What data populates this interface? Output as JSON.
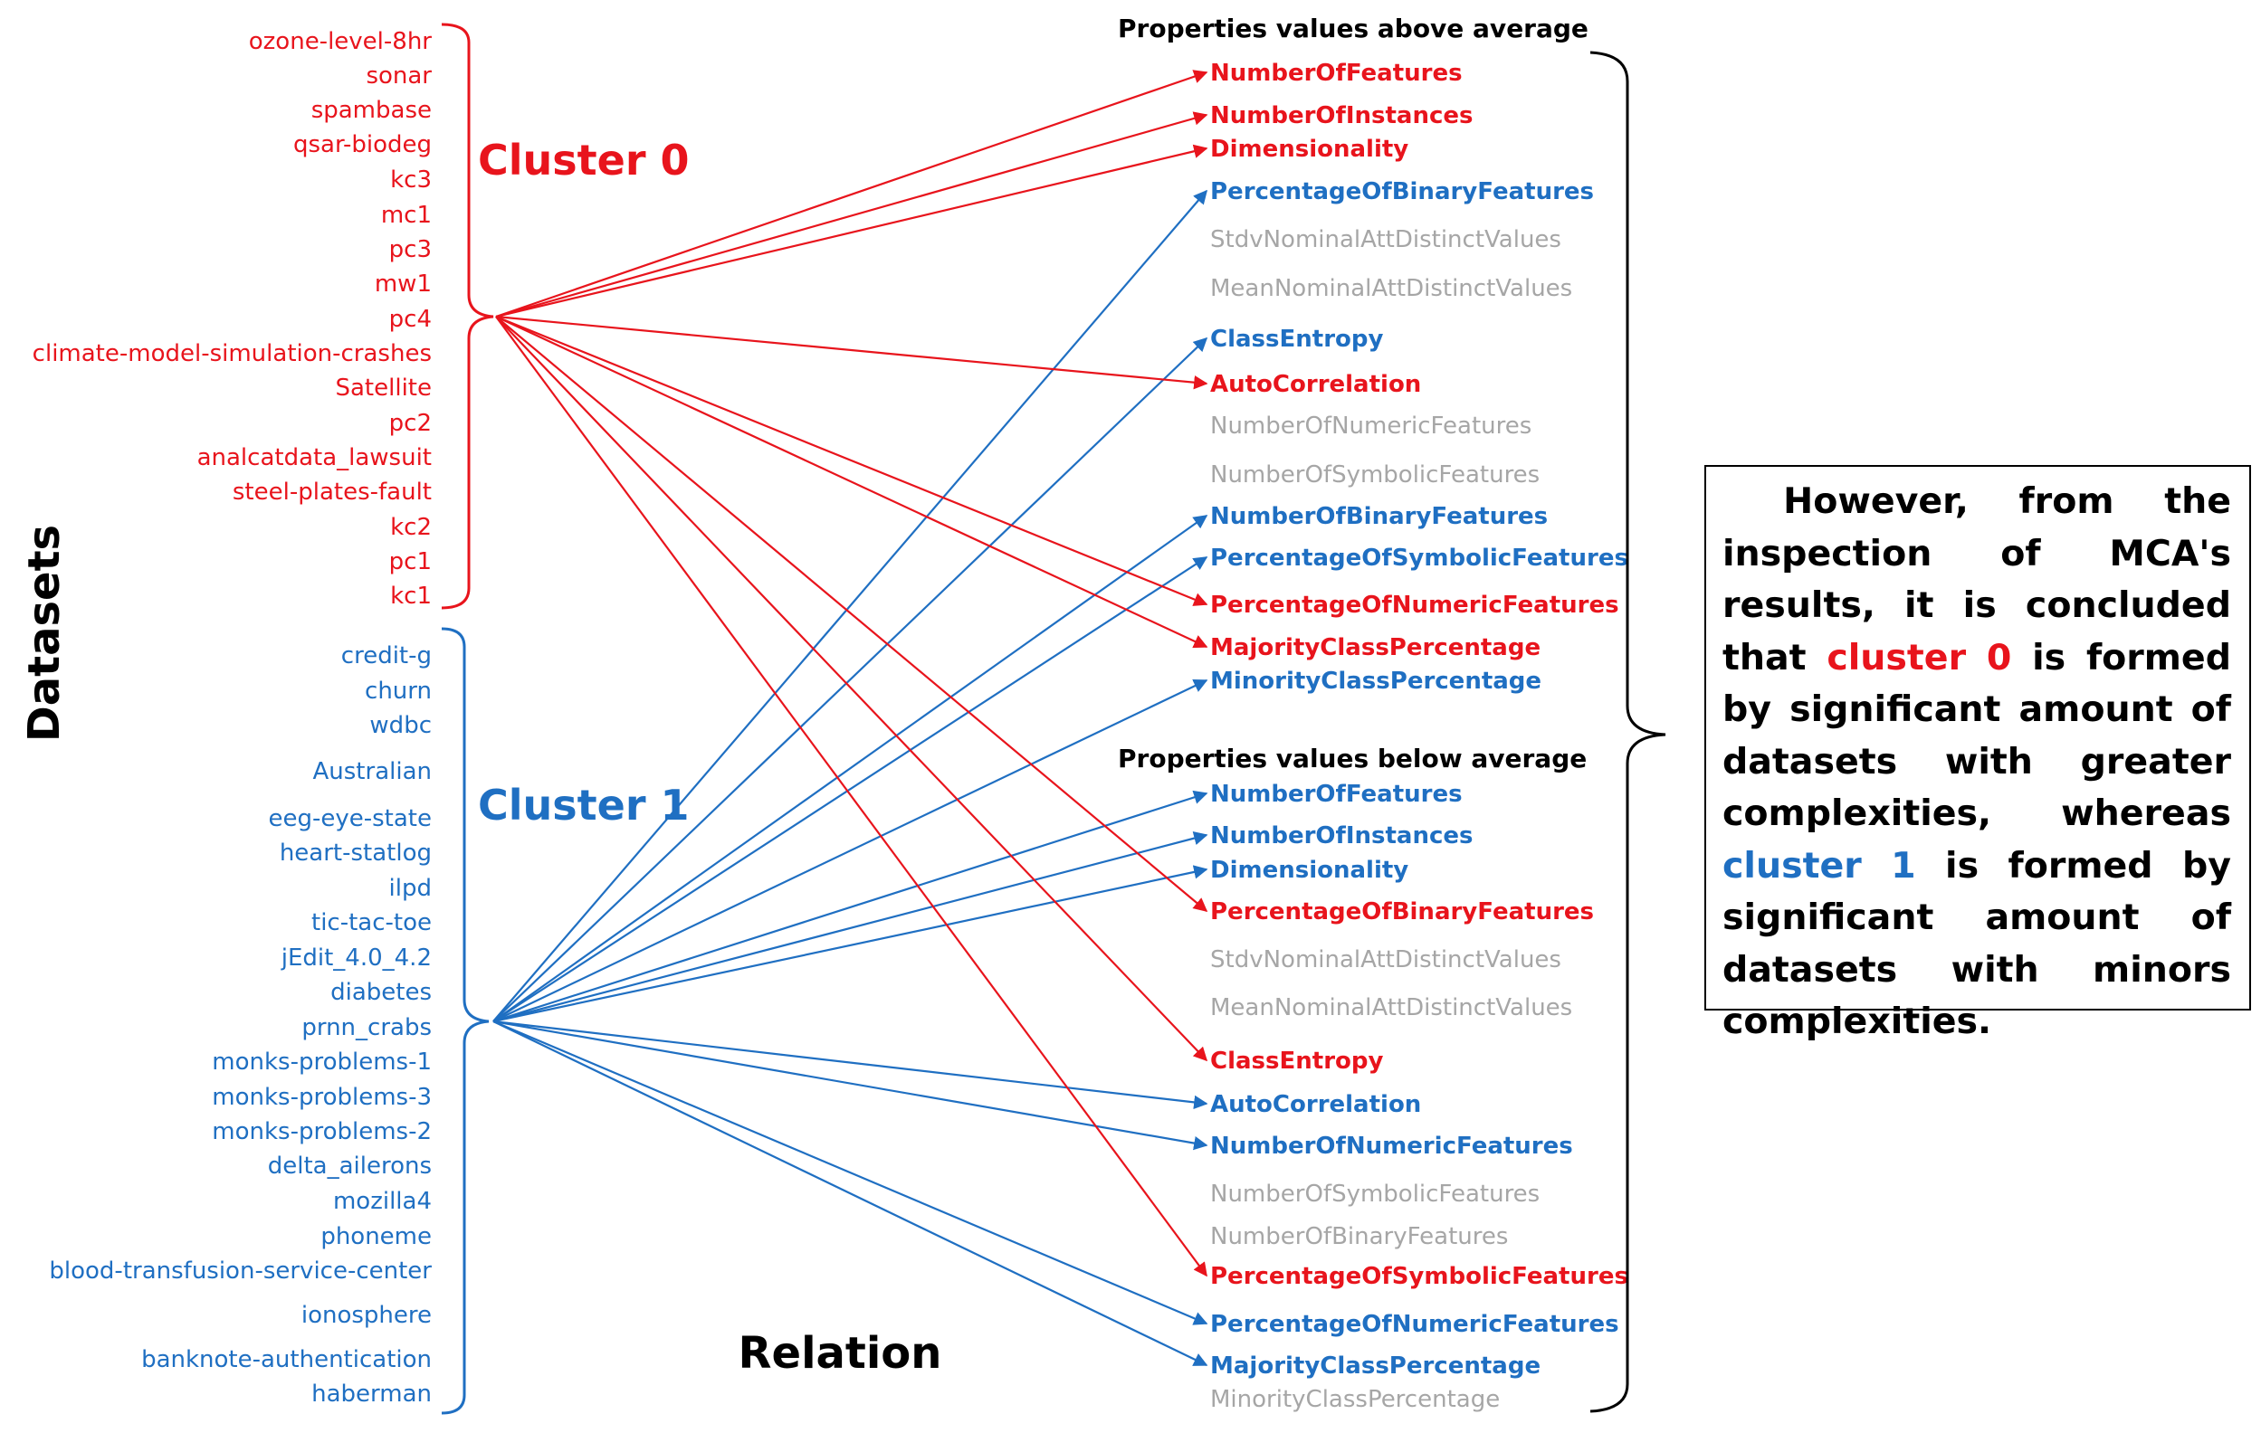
{
  "colors": {
    "cluster0": "#e8141c",
    "cluster1": "#1f6fc2",
    "neutral": "#a6a6a6",
    "text": "#000000"
  },
  "labels": {
    "datasets": "Datasets",
    "relation": "Relation",
    "cluster0": "Cluster 0",
    "cluster1": "Cluster 1",
    "above_header": "Properties values above average",
    "below_header": "Properties values below average"
  },
  "cluster0_datasets": [
    "ozone-level-8hr",
    "sonar",
    "spambase",
    "qsar-biodeg",
    "kc3",
    "mc1",
    "pc3",
    "mw1",
    "pc4",
    "climate-model-simulation-crashes",
    "Satellite",
    "pc2",
    "analcatdata_lawsuit",
    "steel-plates-fault",
    "kc2",
    "pc1",
    "kc1"
  ],
  "cluster1_datasets": [
    "credit-g",
    "churn",
    "wdbc",
    "Australian",
    "eeg-eye-state",
    "heart-statlog",
    "ilpd",
    "tic-tac-toe",
    "jEdit_4.0_4.2",
    "diabetes",
    "prnn_crabs",
    "monks-problems-1",
    "monks-problems-3",
    "monks-problems-2",
    "delta_ailerons",
    "mozilla4",
    "phoneme",
    "blood-transfusion-service-center",
    "ionosphere",
    "banknote-authentication",
    "haberman"
  ],
  "above_properties": [
    {
      "name": "NumberOfFeatures",
      "cluster": "0"
    },
    {
      "name": "NumberOfInstances",
      "cluster": "0"
    },
    {
      "name": "Dimensionality",
      "cluster": "0"
    },
    {
      "name": "PercentageOfBinaryFeatures",
      "cluster": "1"
    },
    {
      "name": "StdvNominalAttDistinctValues",
      "cluster": "none"
    },
    {
      "name": "MeanNominalAttDistinctValues",
      "cluster": "none"
    },
    {
      "name": "ClassEntropy",
      "cluster": "1"
    },
    {
      "name": "AutoCorrelation",
      "cluster": "0"
    },
    {
      "name": "NumberOfNumericFeatures",
      "cluster": "none"
    },
    {
      "name": "NumberOfSymbolicFeatures",
      "cluster": "none"
    },
    {
      "name": "NumberOfBinaryFeatures",
      "cluster": "1"
    },
    {
      "name": "PercentageOfSymbolicFeatures",
      "cluster": "1"
    },
    {
      "name": "PercentageOfNumericFeatures",
      "cluster": "0"
    },
    {
      "name": "MajorityClassPercentage",
      "cluster": "0"
    },
    {
      "name": "MinorityClassPercentage",
      "cluster": "1"
    }
  ],
  "below_properties": [
    {
      "name": "NumberOfFeatures",
      "cluster": "1"
    },
    {
      "name": "NumberOfInstances",
      "cluster": "1"
    },
    {
      "name": "Dimensionality",
      "cluster": "1"
    },
    {
      "name": "PercentageOfBinaryFeatures",
      "cluster": "0"
    },
    {
      "name": "StdvNominalAttDistinctValues",
      "cluster": "none"
    },
    {
      "name": "MeanNominalAttDistinctValues",
      "cluster": "none"
    },
    {
      "name": "ClassEntropy",
      "cluster": "0"
    },
    {
      "name": "AutoCorrelation",
      "cluster": "1"
    },
    {
      "name": "NumberOfNumericFeatures",
      "cluster": "1"
    },
    {
      "name": "NumberOfSymbolicFeatures",
      "cluster": "none"
    },
    {
      "name": "NumberOfBinaryFeatures",
      "cluster": "none"
    },
    {
      "name": "PercentageOfSymbolicFeatures",
      "cluster": "0"
    },
    {
      "name": "PercentageOfNumericFeatures",
      "cluster": "1"
    },
    {
      "name": "MajorityClassPercentage",
      "cluster": "1"
    },
    {
      "name": "MinorityClassPercentage",
      "cluster": "none"
    }
  ],
  "note": {
    "part1": "However, from the inspection of MCA's results, it is concluded that ",
    "c0": "cluster 0",
    "part2": " is formed by significant amount of datasets with greater complexities, whereas ",
    "c1": "cluster 1",
    "part3": " is formed by significant amount of datasets with minors complexities."
  }
}
